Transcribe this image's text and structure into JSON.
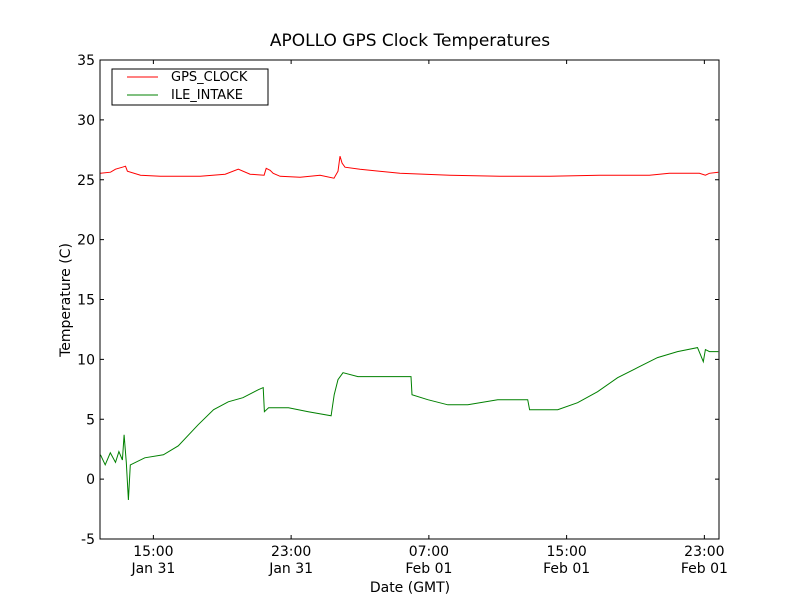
{
  "chart_data": {
    "type": "line",
    "title": "APOLLO GPS Clock Temperatures",
    "xlabel": "Date (GMT)",
    "ylabel": "Temperature (C)",
    "x_units": "hours since Jan 31 00:00 GMT",
    "xlim": [
      11.9,
      47.85
    ],
    "ylim": [
      -5,
      35
    ],
    "yticks": [
      -5,
      0,
      5,
      10,
      15,
      20,
      25,
      30,
      35
    ],
    "ytick_labels": [
      "-5",
      "0",
      "5",
      "10",
      "15",
      "20",
      "25",
      "30",
      "35"
    ],
    "xticks": [
      {
        "x": 15,
        "time": "15:00",
        "date": "Jan 31"
      },
      {
        "x": 23,
        "time": "23:00",
        "date": "Jan 31"
      },
      {
        "x": 31,
        "time": "07:00",
        "date": "Feb 01"
      },
      {
        "x": 39,
        "time": "15:00",
        "date": "Feb 01"
      },
      {
        "x": 47,
        "time": "23:00",
        "date": "Feb 01"
      }
    ],
    "grid": false,
    "legend_position": "top-left",
    "series": [
      {
        "name": "GPS_CLOCK",
        "color": "#ff0000",
        "x": [
          11.93,
          12.51,
          12.8,
          13.2,
          13.38,
          13.49,
          14.25,
          15.41,
          17.72,
          19.17,
          19.93,
          20.62,
          21.43,
          21.55,
          21.78,
          21.96,
          22.36,
          23.52,
          24.68,
          25.49,
          25.72,
          25.84,
          25.96,
          26.13,
          27.0,
          29.32,
          32.22,
          35.12,
          38.01,
          40.91,
          43.81,
          44.97,
          46.71,
          47.06,
          47.29,
          47.81
        ],
        "y": [
          25.54,
          25.63,
          25.88,
          26.05,
          26.13,
          25.71,
          25.38,
          25.29,
          25.29,
          25.46,
          25.88,
          25.46,
          25.38,
          25.96,
          25.79,
          25.54,
          25.29,
          25.21,
          25.38,
          25.13,
          25.71,
          26.97,
          26.38,
          26.05,
          25.88,
          25.54,
          25.38,
          25.29,
          25.29,
          25.38,
          25.38,
          25.54,
          25.54,
          25.38,
          25.54,
          25.63
        ]
      },
      {
        "name": "ILE_INTAKE",
        "color": "#008000",
        "x": [
          11.93,
          12.2,
          12.5,
          12.8,
          13.0,
          13.2,
          13.3,
          13.43,
          13.55,
          13.66,
          14.5,
          15.58,
          16.45,
          17.6,
          18.5,
          19.35,
          20.2,
          21.1,
          21.38,
          21.45,
          21.69,
          22.85,
          24.0,
          25.32,
          25.5,
          25.72,
          26.01,
          26.88,
          29.2,
          29.96,
          30.02,
          30.94,
          32.1,
          33.26,
          35.0,
          36.74,
          36.85,
          37.3,
          38.48,
          39.64,
          40.8,
          41.96,
          43.12,
          44.28,
          45.44,
          46.6,
          46.77,
          46.94,
          47.06,
          47.29,
          47.81
        ],
        "y": [
          2.03,
          1.2,
          2.2,
          1.4,
          2.3,
          1.6,
          3.7,
          1.4,
          -1.74,
          1.19,
          1.78,
          2.03,
          2.78,
          4.54,
          5.8,
          6.46,
          6.8,
          7.47,
          7.64,
          5.63,
          5.96,
          5.96,
          5.63,
          5.29,
          7.05,
          8.31,
          8.89,
          8.56,
          8.56,
          8.56,
          7.05,
          6.63,
          6.21,
          6.21,
          6.63,
          6.63,
          5.8,
          5.8,
          5.8,
          6.38,
          7.3,
          8.47,
          9.31,
          10.15,
          10.65,
          10.98,
          10.4,
          9.81,
          10.82,
          10.65,
          10.65
        ]
      }
    ]
  }
}
